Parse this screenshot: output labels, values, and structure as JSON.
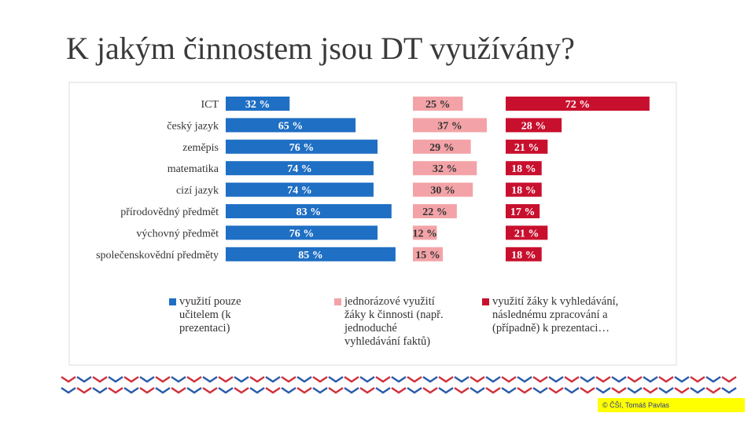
{
  "title": "K jakým činnostem jsou DT využívány?",
  "chart_data": {
    "type": "bar",
    "orientation": "horizontal",
    "layout": "panels",
    "categories": [
      "ICT",
      "český jazyk",
      "zeměpis",
      "matematika",
      "cizí jazyk",
      "přírodovědný předmět",
      "výchovný předmět",
      "společenskovědní předměty"
    ],
    "series": [
      {
        "name": "využití pouze učitelem (k prezentaci)",
        "color": "#1f6fc4",
        "label_color": "#ffffff",
        "values": [
          32,
          65,
          76,
          74,
          74,
          83,
          76,
          85
        ],
        "value_labels": [
          "32 %",
          "65 %",
          "76 %",
          "74 %",
          "74 %",
          "83 %",
          "76 %",
          "85 %"
        ]
      },
      {
        "name": "jednorázové využití žáky k činnosti (např. jednoduché vyhledávání faktů)",
        "color": "#f3a3a7",
        "label_color": "#333333",
        "values": [
          25,
          37,
          29,
          32,
          30,
          22,
          12,
          15
        ],
        "value_labels": [
          "25 %",
          "37 %",
          "29 %",
          "32 %",
          "30 %",
          "22 %",
          "12 %",
          "15 %"
        ]
      },
      {
        "name": "využití žáky k vyhledávání, následnému zpracování a (případně) k prezentaci…",
        "color": "#c8102e",
        "label_color": "#ffffff",
        "values": [
          72,
          28,
          21,
          18,
          18,
          17,
          21,
          18
        ],
        "value_labels": [
          "72 %",
          "28 %",
          "21 %",
          "18 %",
          "18 %",
          "17 %",
          "21 %",
          "18 %"
        ]
      }
    ]
  },
  "footer": "© ČŠI, Tomáš Pavlas"
}
